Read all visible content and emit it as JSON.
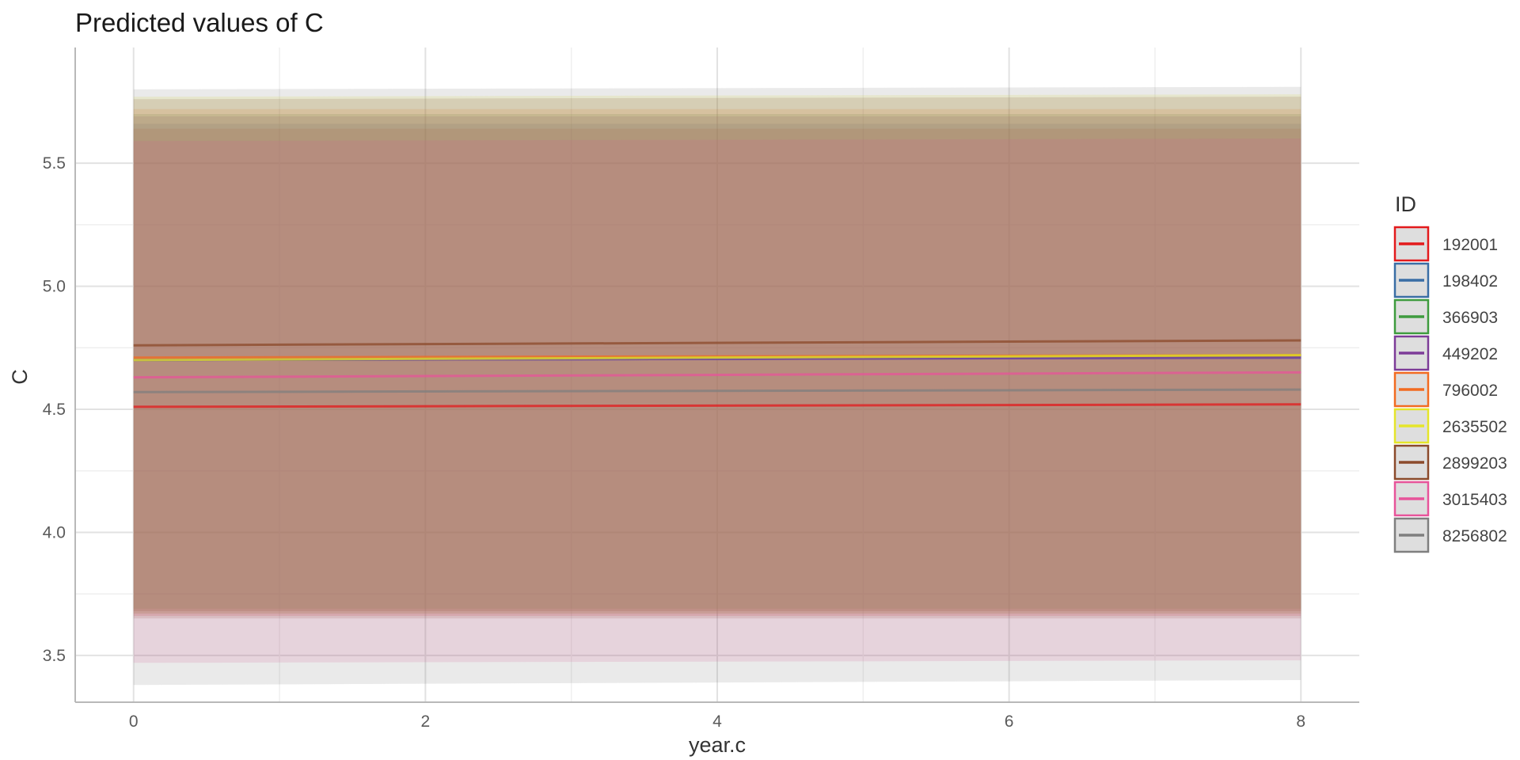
{
  "chart_data": {
    "type": "line",
    "title": "Predicted values of C",
    "xlabel": "year.c",
    "ylabel": "C",
    "xlim": [
      -0.4,
      8.4
    ],
    "ylim": [
      3.31,
      5.97
    ],
    "x_ticks": [
      0,
      2,
      4,
      6,
      8
    ],
    "y_ticks": [
      3.5,
      4.0,
      4.5,
      5.0,
      5.5
    ],
    "x_tick_labels": [
      "0",
      "2",
      "4",
      "6",
      "8"
    ],
    "y_tick_labels": [
      "3.5",
      "4.0",
      "4.5",
      "5.0",
      "5.5"
    ],
    "grid": true,
    "legend_title": "ID",
    "legend_position": "right",
    "x": [
      0,
      8
    ],
    "series": [
      {
        "name": "192001",
        "color": "#E31A1C",
        "values": [
          4.51,
          4.52
        ],
        "ci_low": [
          3.66,
          3.66
        ],
        "ci_high": [
          5.64,
          5.64
        ]
      },
      {
        "name": "198402",
        "color": "#3A6EA5",
        "values": [
          4.7,
          4.71
        ],
        "ci_low": [
          3.68,
          3.68
        ],
        "ci_high": [
          5.66,
          5.66
        ]
      },
      {
        "name": "366903",
        "color": "#3E9B3E",
        "values": [
          4.7,
          4.72
        ],
        "ci_low": [
          3.69,
          3.69
        ],
        "ci_high": [
          5.7,
          5.7
        ]
      },
      {
        "name": "449202",
        "color": "#7D3C98",
        "values": [
          4.7,
          4.71
        ],
        "ci_low": [
          3.67,
          3.67
        ],
        "ci_high": [
          5.69,
          5.69
        ]
      },
      {
        "name": "796002",
        "color": "#F26B21",
        "values": [
          4.71,
          4.72
        ],
        "ci_low": [
          3.68,
          3.68
        ],
        "ci_high": [
          5.72,
          5.72
        ]
      },
      {
        "name": "2635502",
        "color": "#E5E52A",
        "values": [
          4.7,
          4.72
        ],
        "ci_low": [
          3.67,
          3.67
        ],
        "ci_high": [
          5.77,
          5.78
        ]
      },
      {
        "name": "2899203",
        "color": "#8B4A2B",
        "values": [
          4.76,
          4.78
        ],
        "ci_low": [
          3.65,
          3.65
        ],
        "ci_high": [
          5.76,
          5.77
        ]
      },
      {
        "name": "3015403",
        "color": "#E7549A",
        "values": [
          4.63,
          4.65
        ],
        "ci_low": [
          3.47,
          3.48
        ],
        "ci_high": [
          5.59,
          5.6
        ]
      },
      {
        "name": "8256802",
        "color": "#7F7F7F",
        "values": [
          4.57,
          4.58
        ],
        "ci_low": [
          3.38,
          3.4
        ],
        "ci_high": [
          5.8,
          5.81
        ]
      }
    ]
  }
}
